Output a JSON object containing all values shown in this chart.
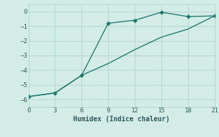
{
  "line1_x": [
    0,
    3,
    6,
    9,
    12,
    15,
    18,
    21
  ],
  "line1_y": [
    -5.8,
    -5.55,
    -4.35,
    -0.8,
    -0.6,
    -0.05,
    -0.35,
    -0.3
  ],
  "line2_x": [
    0,
    3,
    6,
    9,
    12,
    15,
    18,
    21
  ],
  "line2_y": [
    -5.8,
    -5.55,
    -4.35,
    -3.55,
    -2.6,
    -1.75,
    -1.2,
    -0.3
  ],
  "color": "#1f7a6e",
  "background_color": "#d4ece8",
  "grid_color": "#b8d8d2",
  "xlabel": "Humidex (Indice chaleur)",
  "xlim": [
    0,
    21
  ],
  "ylim": [
    -6.5,
    0.5
  ],
  "xticks": [
    0,
    3,
    6,
    9,
    12,
    15,
    18,
    21
  ],
  "yticks": [
    0,
    -1,
    -2,
    -3,
    -4,
    -5,
    -6
  ],
  "font_color": "#2a5a5a",
  "marker_x": [
    0,
    3,
    6,
    9,
    12,
    15,
    18,
    21
  ],
  "marker_y": [
    -5.8,
    -5.55,
    -4.35,
    -0.8,
    -0.6,
    -0.05,
    -0.35,
    -0.3
  ]
}
